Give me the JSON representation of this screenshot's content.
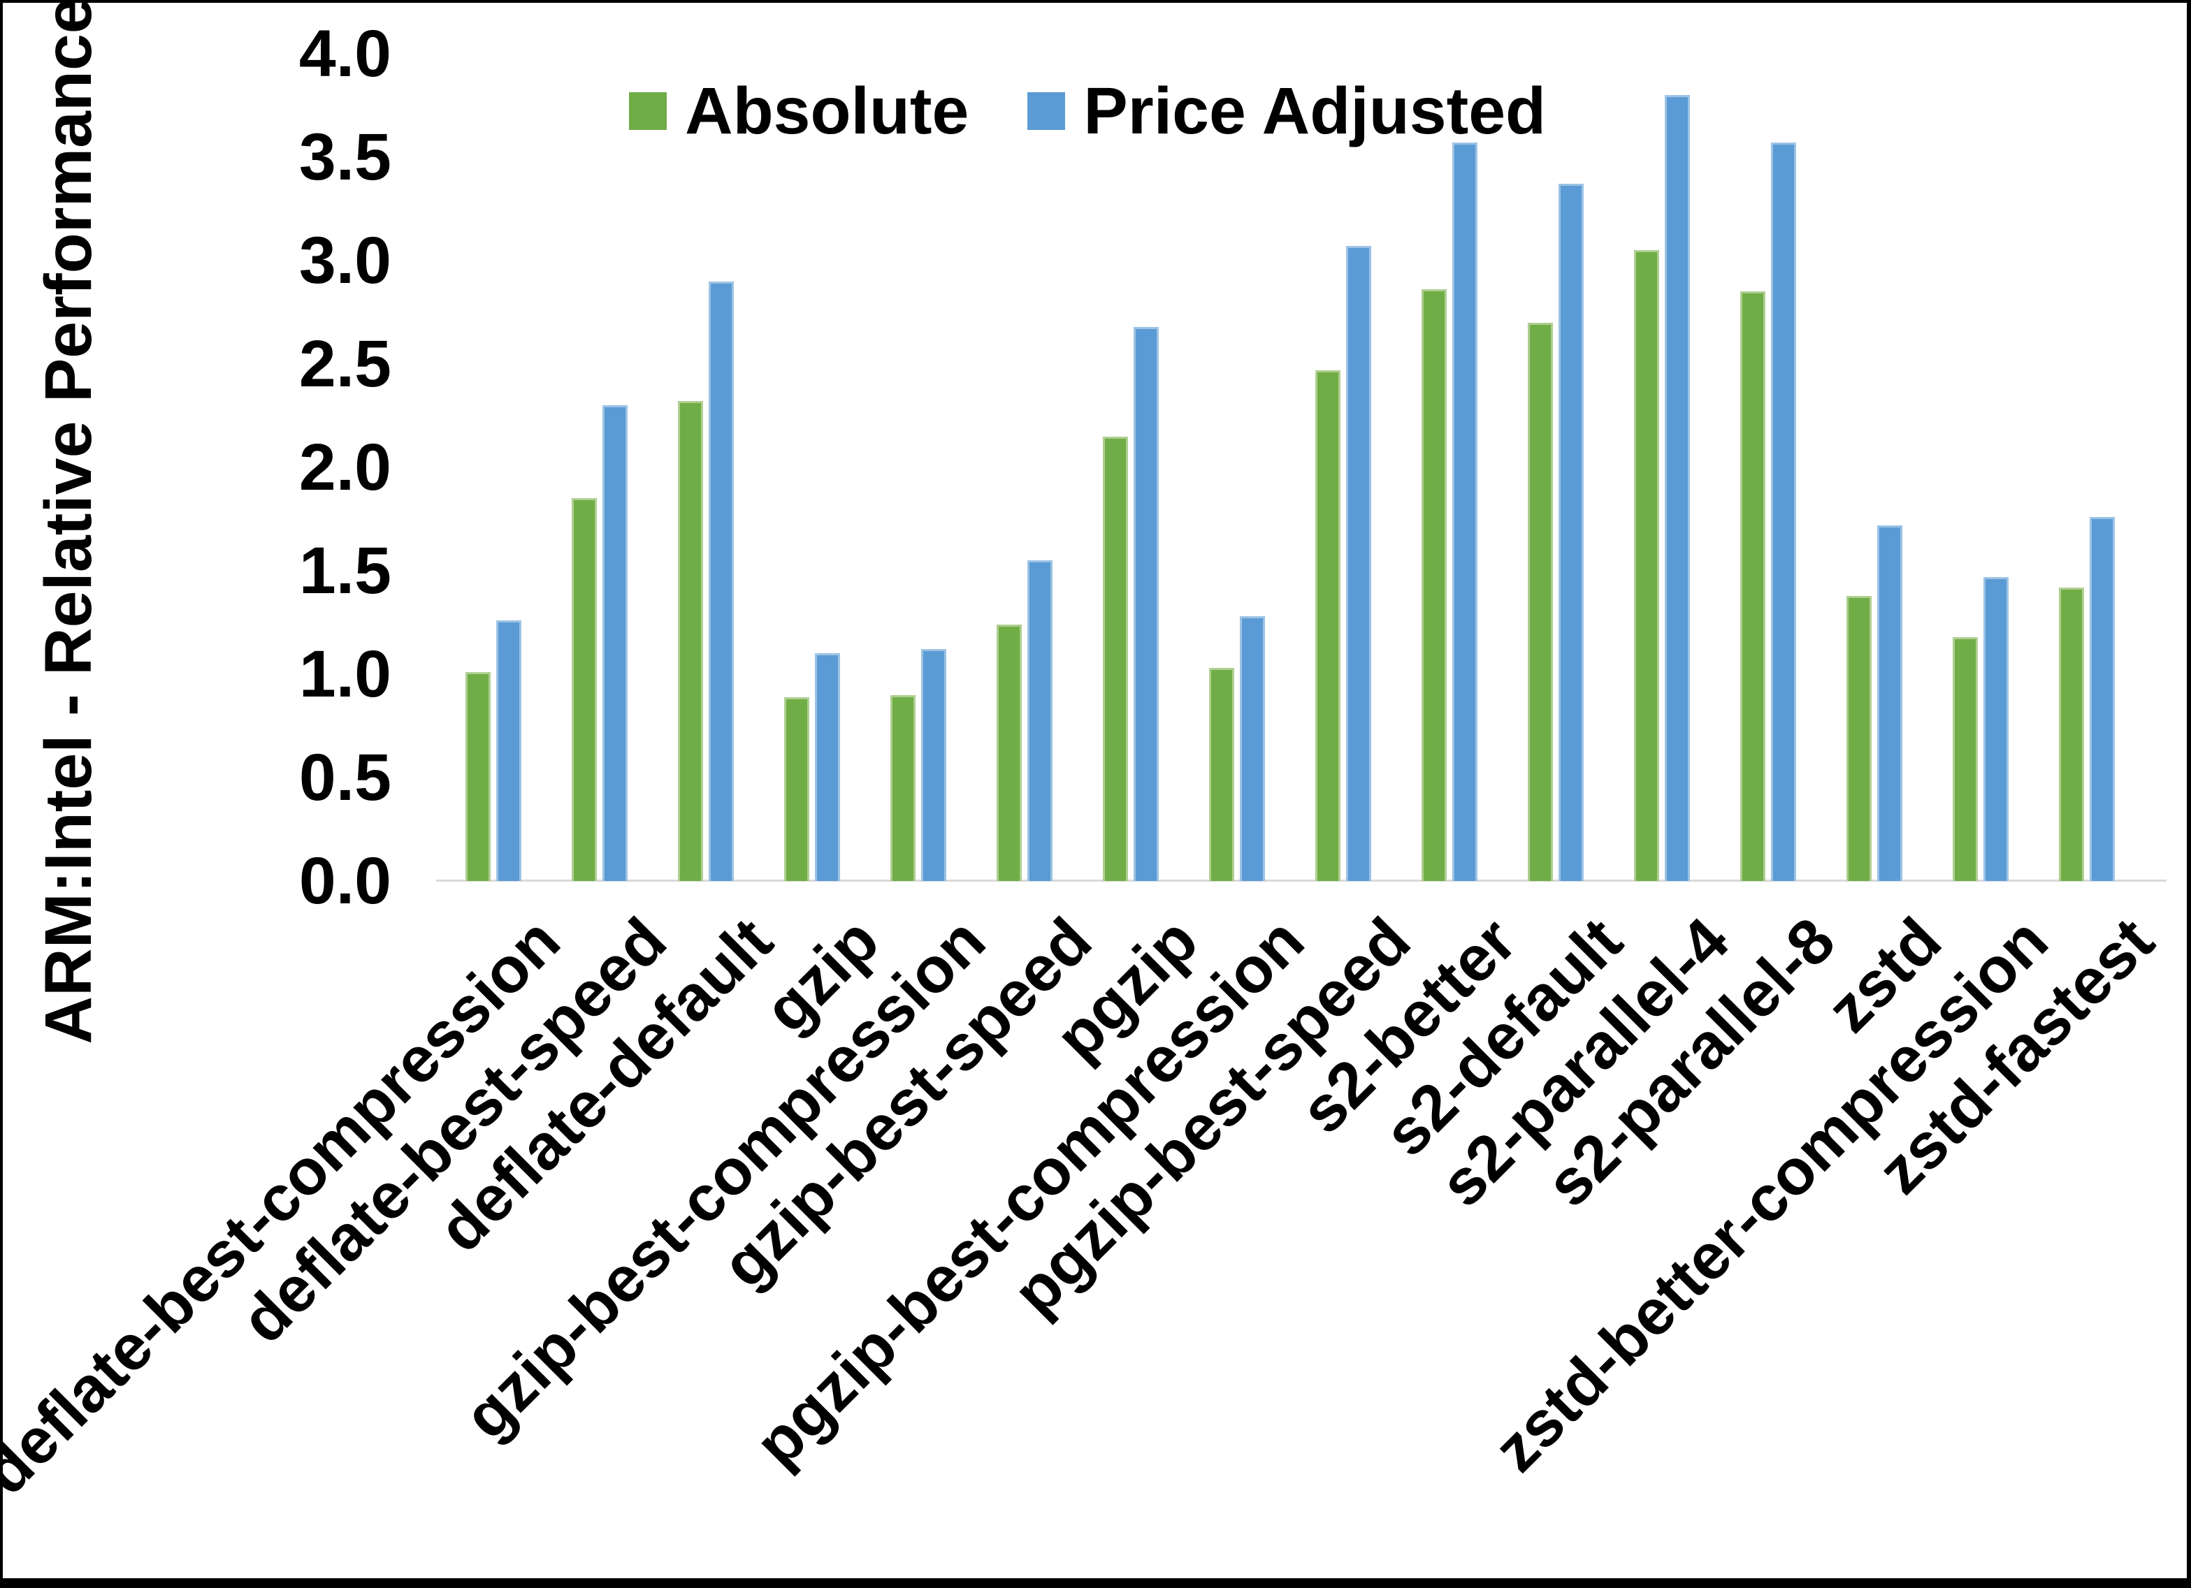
{
  "chart_data": {
    "type": "bar",
    "title": "",
    "ylabel": "ARM:Intel - Relative Performance",
    "xlabel": "",
    "categories": [
      "deflate-best-compression",
      "deflate-best-speed",
      "deflate-default",
      "gzip",
      "gzip-best-compression",
      "gzip-best-speed",
      "pgzip",
      "pgzip-best-compression",
      "pgzip-best-speed",
      "s2-better",
      "s2-default",
      "s2-parallel-4",
      "s2-parallel-8",
      "zstd",
      "zstd-better-compression",
      "zstd-fastest"
    ],
    "series": [
      {
        "name": "Absolute",
        "color": "#70AD47",
        "values": [
          1.01,
          1.85,
          2.32,
          0.89,
          0.9,
          1.24,
          2.15,
          1.03,
          2.47,
          2.86,
          2.7,
          3.05,
          2.85,
          1.38,
          1.18,
          1.42
        ]
      },
      {
        "name": "Price Adjusted",
        "color": "#5B9BD5",
        "values": [
          1.26,
          2.3,
          2.9,
          1.1,
          1.12,
          1.55,
          2.68,
          1.28,
          3.07,
          3.57,
          3.37,
          3.8,
          3.57,
          1.72,
          1.47,
          1.76
        ]
      }
    ],
    "ylim": [
      0.0,
      4.0
    ],
    "ytick_labels": [
      "0.0",
      "0.5",
      "1.0",
      "1.5",
      "2.0",
      "2.5",
      "3.0",
      "3.5",
      "4.0"
    ],
    "legend_position": "top-center",
    "grid": false,
    "axis_line_color": "#D9D9D9",
    "text_color": "#000000",
    "background_color": "#FFFFFF"
  }
}
